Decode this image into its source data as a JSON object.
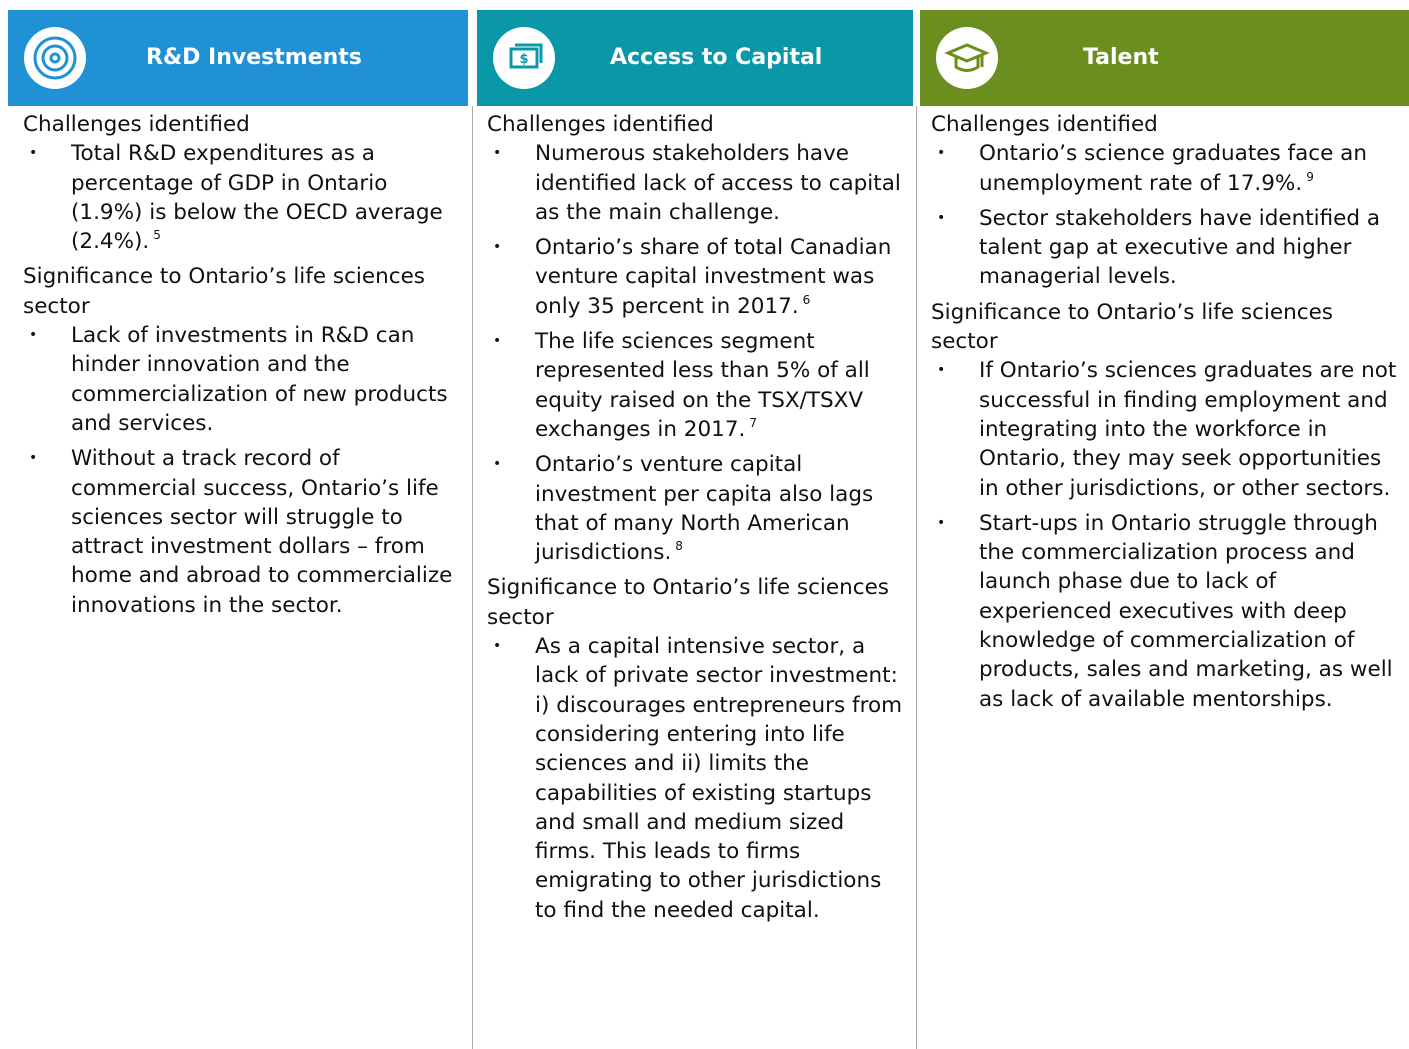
{
  "columns": [
    {
      "title": "R&D Investments",
      "sections": [
        {
          "heading": "Challenges identified",
          "items": [
            {
              "text": "Total R&D expenditures as a percentage of GDP in Ontario (1.9%) is below the OECD average (2.4%).",
              "note": "5"
            }
          ]
        },
        {
          "heading": "Significance to Ontario’s life sciences sector",
          "items": [
            {
              "text": "Lack of investments in R&D can hinder innovation and the commercialization of new products and services."
            },
            {
              "text": "Without a track record of commercial success, Ontario’s life sciences sector will struggle to attract investment dollars – from home and abroad to commercialize innovations in the sector."
            }
          ]
        }
      ]
    },
    {
      "title": "Access to Capital",
      "sections": [
        {
          "heading": "Challenges identified",
          "items": [
            {
              "text": "Numerous stakeholders have identified lack of access to capital as the main challenge."
            },
            {
              "text": "Ontario’s share of total Canadian venture capital investment was only 35 percent in 2017.",
              "note": "6"
            },
            {
              "text": "The life sciences segment represented less than 5% of all equity raised on the TSX/TSXV exchanges in 2017.",
              "note": "7"
            },
            {
              "text": "Ontario’s venture capital investment per capita also lags that of many North American jurisdictions.",
              "note": "8"
            }
          ]
        },
        {
          "heading": "Significance to Ontario’s life sciences sector",
          "items": [
            {
              "text": "As a capital intensive sector, a lack of private sector investment: i) discourages entrepreneurs from considering entering into life sciences and ii) limits the capabilities of existing startups and small and medium sized firms. This leads to firms emigrating to other jurisdictions to find the needed capital."
            }
          ]
        }
      ]
    },
    {
      "title": "Talent",
      "sections": [
        {
          "heading": "Challenges identified",
          "items": [
            {
              "text": "Ontario’s science graduates face an unemployment rate of 17.9%.",
              "note": "9"
            },
            {
              "text": "Sector stakeholders have identified a talent gap at executive and higher managerial levels."
            }
          ]
        },
        {
          "heading": "Significance to Ontario’s life sciences sector",
          "items": [
            {
              "text": "If Ontario’s sciences graduates are not successful in finding employment and integrating into the workforce in Ontario, they may seek opportunities in other jurisdictions, or other sectors."
            },
            {
              "text": "Start-ups in Ontario struggle through the commercialization process and launch phase due to lack of experienced executives with deep knowledge of commercialization of products, sales and marketing, as well as lack of available mentorships."
            }
          ]
        }
      ]
    }
  ]
}
